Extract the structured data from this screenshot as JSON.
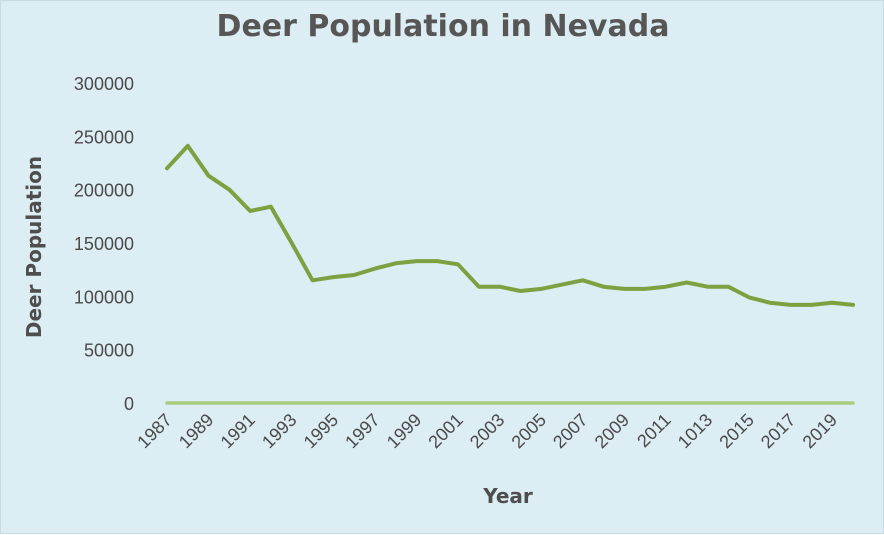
{
  "chart_data": {
    "type": "line",
    "title": "Deer Population in Nevada",
    "xlabel": "Year",
    "ylabel": "Deer Population",
    "ylim": [
      0,
      300000
    ],
    "yticks": [
      "0",
      "50000",
      "100000",
      "150000",
      "200000",
      "250000",
      "300000"
    ],
    "x": [
      "1987",
      "1988",
      "1989",
      "1990",
      "1991",
      "1992",
      "1993",
      "1994",
      "1995",
      "1996",
      "1997",
      "1998",
      "1999",
      "2000",
      "2001",
      "2002",
      "2003",
      "2004",
      "2005",
      "2006",
      "2007",
      "2008",
      "2009",
      "2010",
      "2011",
      "1012",
      "1013",
      "1014",
      "2015",
      "2016",
      "2017",
      "2018",
      "2019",
      "2020"
    ],
    "xtick_labels": [
      "1987",
      "1989",
      "1991",
      "1993",
      "1995",
      "1997",
      "1999",
      "2001",
      "2003",
      "2005",
      "2007",
      "2009",
      "2011",
      "1013",
      "2015",
      "2017",
      "2019"
    ],
    "grid": false,
    "legend": "none",
    "series": [
      {
        "color": "#7da041",
        "values": [
          220000,
          241000,
          213000,
          200000,
          180000,
          184000,
          150000,
          115000,
          118000,
          120000,
          126000,
          131000,
          133000,
          133000,
          130000,
          109000,
          109000,
          105000,
          107000,
          111000,
          115000,
          109000,
          107000,
          107000,
          109000,
          113000,
          109000,
          109000,
          99000,
          94000,
          92000,
          92000,
          94000,
          92000
        ]
      },
      {
        "color": "#a9cd7d",
        "values": [
          0,
          0,
          0,
          0,
          0,
          0,
          0,
          0,
          0,
          0,
          0,
          0,
          0,
          0,
          0,
          0,
          0,
          0,
          0,
          0,
          0,
          0,
          0,
          0,
          0,
          0,
          0,
          0,
          0,
          0,
          0,
          0,
          0,
          0
        ]
      }
    ]
  }
}
